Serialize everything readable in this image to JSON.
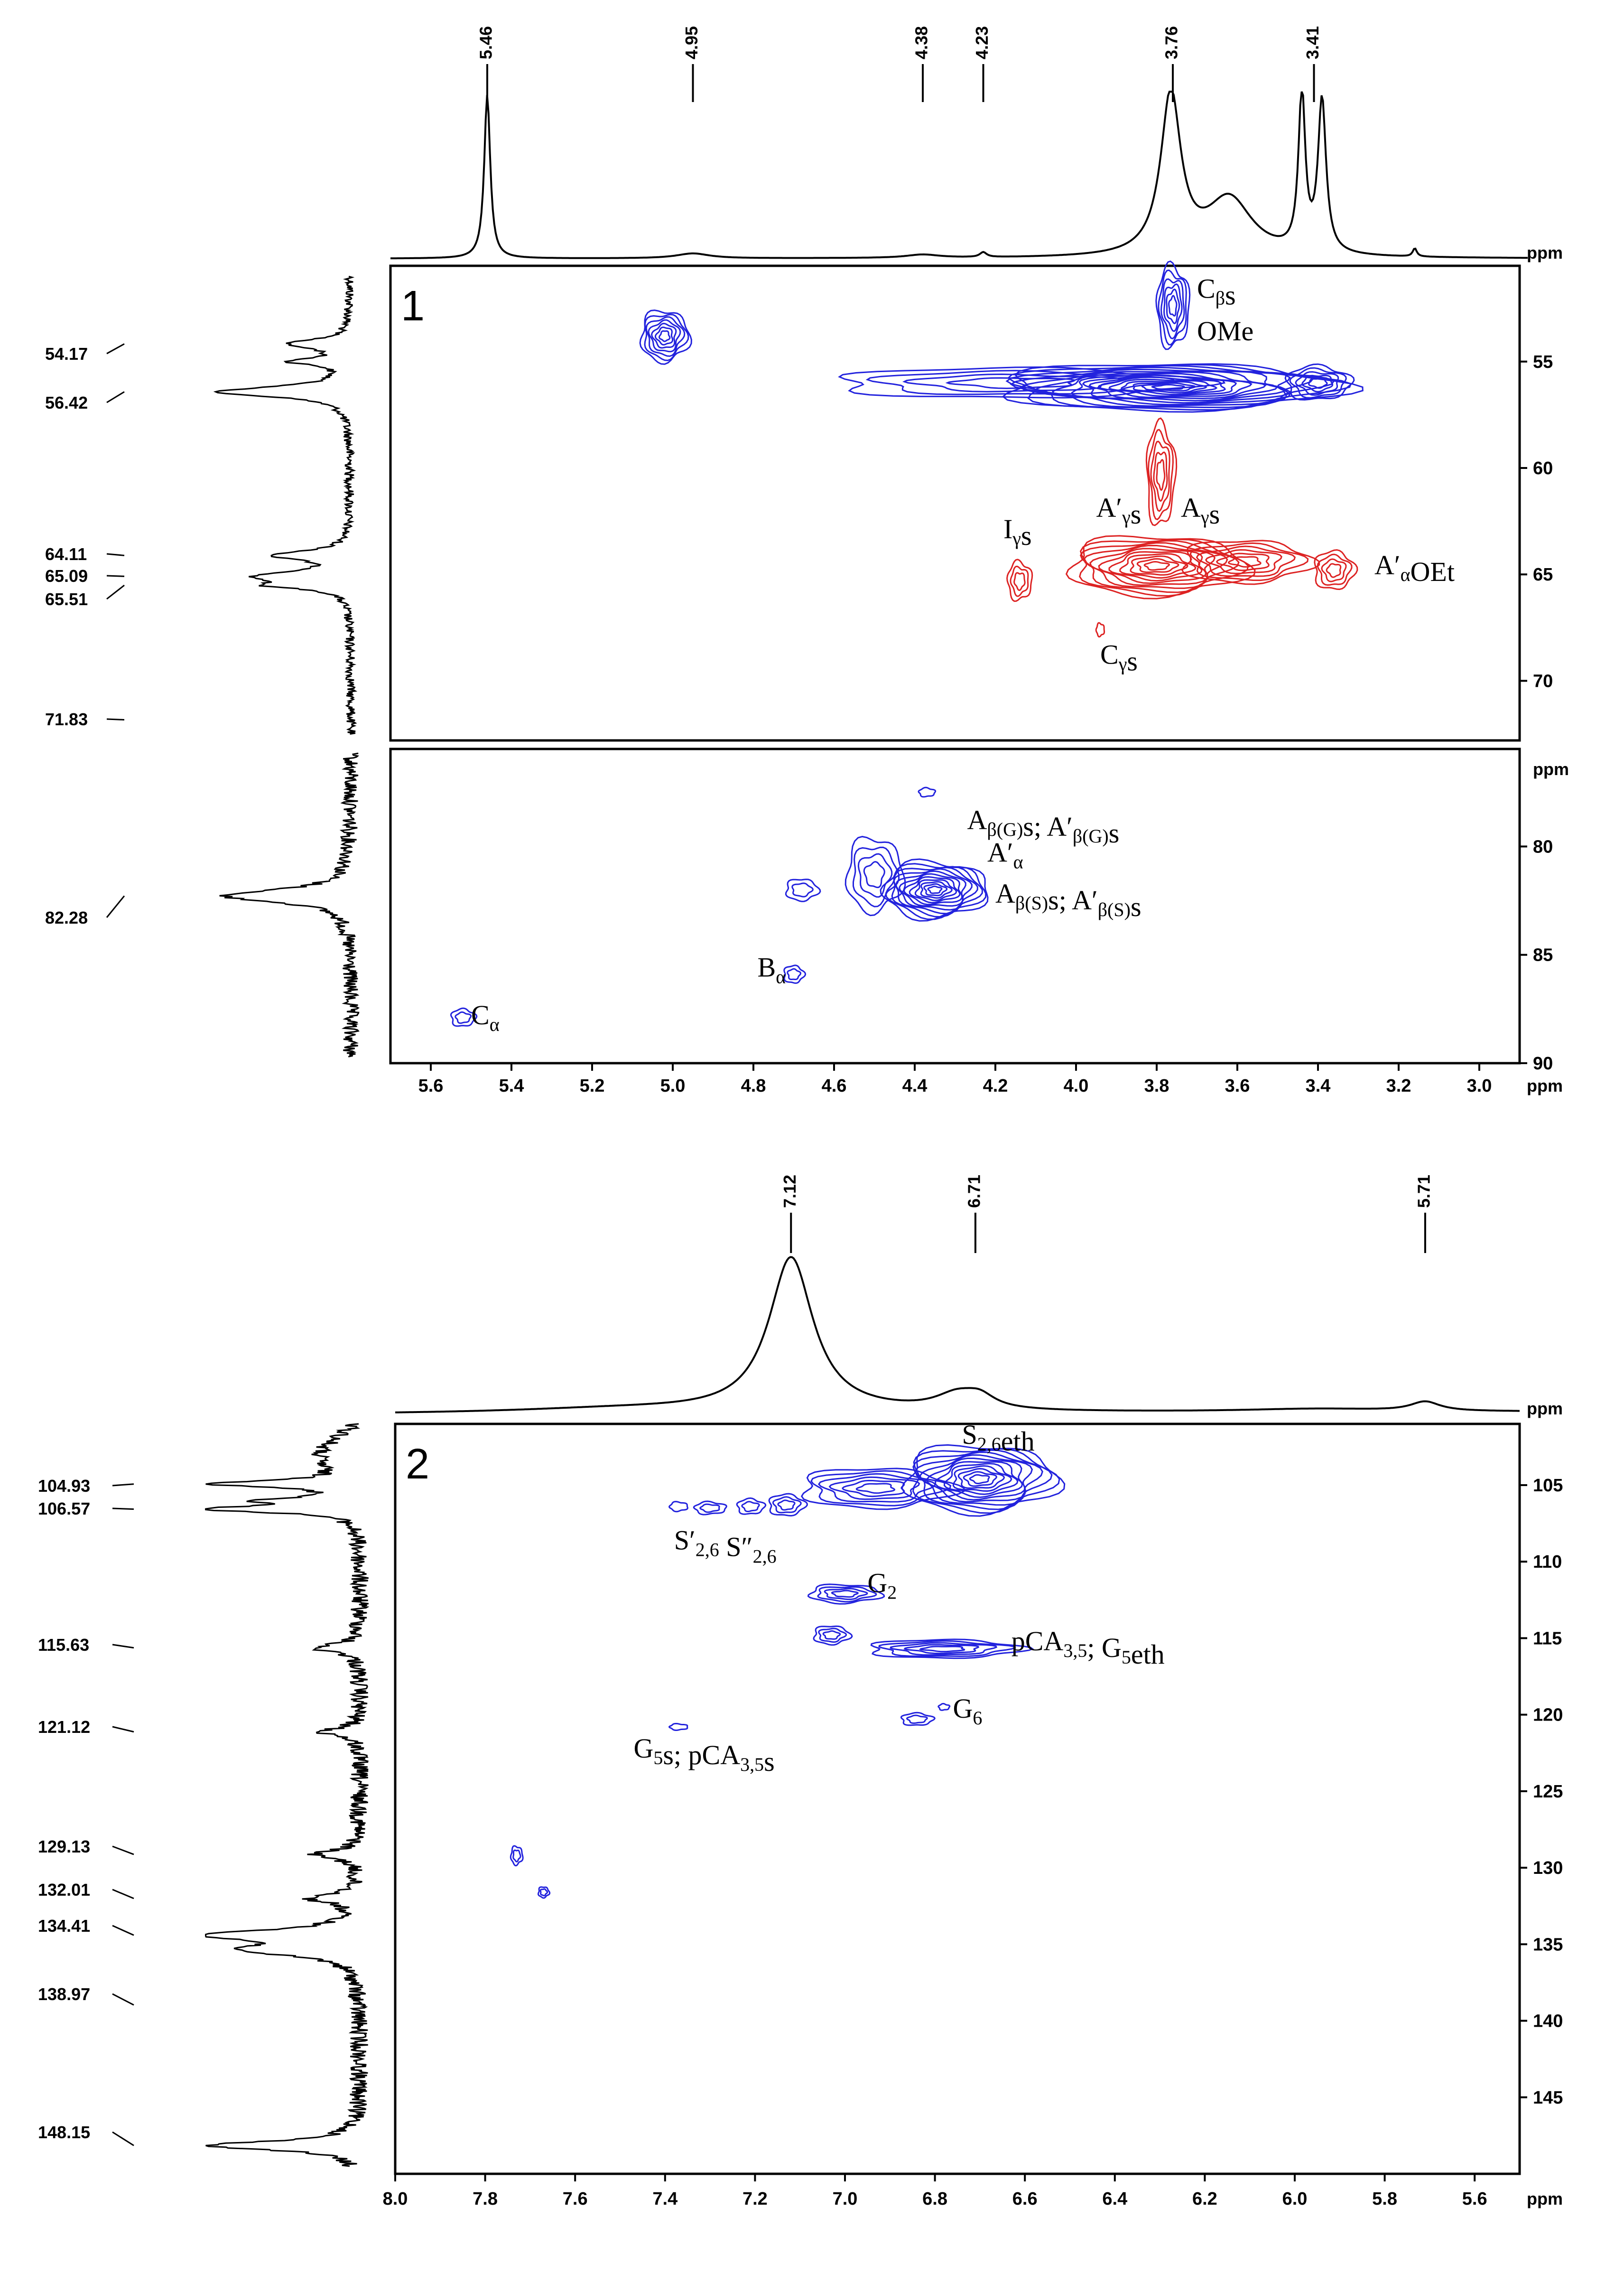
{
  "ppm_unit": "ppm",
  "colors": {
    "positive": "#2222dd",
    "negative": "#dd2222",
    "trace": "#000000"
  },
  "panel1": {
    "number": "1",
    "h_axis": {
      "min": 2.9,
      "max": 5.7,
      "ticks": [
        "5.6",
        "5.4",
        "5.2",
        "5.0",
        "4.8",
        "4.6",
        "4.4",
        "4.2",
        "4.0",
        "3.8",
        "3.6",
        "3.4",
        "3.2",
        "3.0"
      ],
      "tick_values": [
        5.6,
        5.4,
        5.2,
        5.0,
        4.8,
        4.6,
        4.4,
        4.2,
        4.0,
        3.8,
        3.6,
        3.4,
        3.2,
        3.0
      ]
    },
    "upper": {
      "c_min": 50.5,
      "c_max": 72.8,
      "ticks": [
        "55",
        "60",
        "65",
        "70"
      ],
      "tick_values": [
        55,
        60,
        65,
        70
      ]
    },
    "lower": {
      "c_min": 75.5,
      "c_max": 90,
      "ticks": [
        "80",
        "85",
        "90"
      ],
      "tick_values": [
        80,
        85,
        90
      ],
      "top_label": "ppm"
    },
    "proton_peaks": [
      {
        "label": "5.46",
        "ppm": 5.46
      },
      {
        "label": "4.95",
        "ppm": 4.95
      },
      {
        "label": "4.38",
        "ppm": 4.38
      },
      {
        "label": "4.23",
        "ppm": 4.23
      },
      {
        "label": "3.76",
        "ppm": 3.76
      },
      {
        "label": "3.41",
        "ppm": 3.41
      }
    ],
    "carbon_peaks": [
      {
        "label": "54.17",
        "ppm": 54.17
      },
      {
        "label": "56.42",
        "ppm": 56.42
      },
      {
        "label": "64.11",
        "ppm": 64.11
      },
      {
        "label": "65.09",
        "ppm": 65.09
      },
      {
        "label": "65.51",
        "ppm": 65.51
      },
      {
        "label": "71.83",
        "ppm": 71.83
      },
      {
        "label": "82.28",
        "ppm": 82.28
      }
    ],
    "annotations": [
      {
        "id": "cbs",
        "main": "C",
        "sub": "β",
        "tail": "s",
        "h": 3.7,
        "c": 52.0
      },
      {
        "id": "ome",
        "main": "OMe",
        "sub": "",
        "tail": "",
        "h": 3.7,
        "c": 54.0
      },
      {
        "id": "ags",
        "main": "A",
        "sub": "γ",
        "tail": "s",
        "h": 3.74,
        "c": 62.3
      },
      {
        "id": "apgs",
        "main": "A′",
        "sub": "γ",
        "tail": "s",
        "h": 3.95,
        "c": 62.3
      },
      {
        "id": "igs",
        "main": "I",
        "sub": "γ",
        "tail": "s",
        "h": 4.18,
        "c": 63.3
      },
      {
        "id": "aaoet",
        "main": "A′",
        "sub": "α",
        "tail": "OEt",
        "h": 3.26,
        "c": 65.0
      },
      {
        "id": "cgs",
        "main": "C",
        "sub": "γ",
        "tail": "s",
        "h": 3.94,
        "c": 69.2
      },
      {
        "id": "abg",
        "main": "A",
        "sub": "β(G)",
        "tail": "s; A′",
        "sub2": "β(G)",
        "tail2": "s",
        "h": 4.27,
        "c": 79.2
      },
      {
        "id": "apa",
        "main": "A′",
        "sub": "α",
        "tail": "",
        "h": 4.22,
        "c": 80.7
      },
      {
        "id": "abs",
        "main": "A",
        "sub": "β(S)",
        "tail": "s; A′",
        "sub2": "β(S)",
        "tail2": "s",
        "h": 4.2,
        "c": 82.6
      },
      {
        "id": "ba",
        "main": "B",
        "sub": "α",
        "tail": "",
        "h": 4.79,
        "c": 86.0
      },
      {
        "id": "ca",
        "main": "C",
        "sub": "α",
        "tail": "",
        "h": 5.5,
        "c": 88.2
      }
    ],
    "contours": {
      "positive": [
        {
          "h": 5.02,
          "c": 53.8,
          "rh": 0.06,
          "rc": 1.2,
          "n": 7
        },
        {
          "h": 3.77,
          "c": 56.2,
          "rh": 0.42,
          "rc": 1.1,
          "n": 16
        },
        {
          "h": 4.15,
          "c": 56.0,
          "rh": 0.45,
          "rc": 0.7,
          "n": 4
        },
        {
          "h": 3.4,
          "c": 56.0,
          "rh": 0.08,
          "rc": 0.8,
          "n": 5
        },
        {
          "h": 3.76,
          "c": 52.4,
          "rh": 0.04,
          "rc": 1.9,
          "n": 6
        },
        {
          "h": 4.35,
          "c": 82.0,
          "rh": 0.13,
          "rc": 1.3,
          "n": 12
        },
        {
          "h": 4.5,
          "c": 81.3,
          "rh": 0.07,
          "rc": 1.7,
          "n": 4
        },
        {
          "h": 4.68,
          "c": 82.0,
          "rh": 0.04,
          "rc": 0.5,
          "n": 2
        },
        {
          "h": 4.7,
          "c": 85.9,
          "rh": 0.025,
          "rc": 0.4,
          "n": 2
        },
        {
          "h": 5.52,
          "c": 87.9,
          "rh": 0.03,
          "rc": 0.4,
          "n": 2
        },
        {
          "h": 4.37,
          "c": 77.5,
          "rh": 0.02,
          "rc": 0.2,
          "n": 1
        }
      ],
      "negative": [
        {
          "h": 3.8,
          "c": 64.6,
          "rh": 0.22,
          "rc": 1.4,
          "n": 11
        },
        {
          "h": 3.58,
          "c": 64.4,
          "rh": 0.16,
          "rc": 1.0,
          "n": 6
        },
        {
          "h": 3.36,
          "c": 64.8,
          "rh": 0.05,
          "rc": 0.9,
          "n": 4
        },
        {
          "h": 3.79,
          "c": 60.3,
          "rh": 0.035,
          "rc": 2.4,
          "n": 5
        },
        {
          "h": 4.14,
          "c": 65.3,
          "rh": 0.03,
          "rc": 0.9,
          "n": 3
        },
        {
          "h": 3.94,
          "c": 67.6,
          "rh": 0.01,
          "rc": 0.3,
          "n": 1
        }
      ]
    }
  },
  "panel2": {
    "number": "2",
    "h_axis": {
      "min": 5.5,
      "max": 8.0,
      "ticks": [
        "8.0",
        "7.8",
        "7.6",
        "7.4",
        "7.2",
        "7.0",
        "6.8",
        "6.6",
        "6.4",
        "6.2",
        "6.0",
        "5.8",
        "5.6"
      ],
      "tick_values": [
        8.0,
        7.8,
        7.6,
        7.4,
        7.2,
        7.0,
        6.8,
        6.6,
        6.4,
        6.2,
        6.0,
        5.8,
        5.6
      ]
    },
    "c_axis": {
      "c_min": 101,
      "c_max": 150,
      "ticks": [
        "105",
        "110",
        "115",
        "120",
        "125",
        "130",
        "135",
        "140",
        "145"
      ],
      "tick_values": [
        105,
        110,
        115,
        120,
        125,
        130,
        135,
        140,
        145
      ]
    },
    "proton_peaks": [
      {
        "label": "7.12",
        "ppm": 7.12
      },
      {
        "label": "6.71",
        "ppm": 6.71
      },
      {
        "label": "5.71",
        "ppm": 5.71
      }
    ],
    "carbon_peaks": [
      {
        "label": "104.93",
        "ppm": 104.93
      },
      {
        "label": "106.57",
        "ppm": 106.57
      },
      {
        "label": "115.63",
        "ppm": 115.63
      },
      {
        "label": "121.12",
        "ppm": 121.12
      },
      {
        "label": "129.13",
        "ppm": 129.13
      },
      {
        "label": "132.01",
        "ppm": 132.01
      },
      {
        "label": "134.41",
        "ppm": 134.41
      },
      {
        "label": "138.97",
        "ppm": 138.97
      },
      {
        "label": "148.15",
        "ppm": 148.15
      }
    ],
    "annotations": [
      {
        "id": "s26eth",
        "main": "S",
        "sub": "2,6",
        "tail": "eth",
        "h": 6.74,
        "c": 102.3
      },
      {
        "id": "sp",
        "main": "S′",
        "sub": "2,6",
        "tail": " S″",
        "sub2": "2,6",
        "tail2": "",
        "h": 7.38,
        "c": 109.2
      },
      {
        "id": "g2",
        "main": "G",
        "sub": "2",
        "tail": "",
        "h": 6.95,
        "c": 112.0
      },
      {
        "id": "pca",
        "main": "pCA",
        "sub": "3,5",
        "tail": "; G",
        "sub2": "5",
        "tail2": "eth",
        "h": 6.63,
        "c": 115.8
      },
      {
        "id": "g6",
        "main": "G",
        "sub": "6",
        "tail": "",
        "h": 6.76,
        "c": 120.2
      },
      {
        "id": "g5s",
        "main": "G",
        "sub": "5",
        "tail": "s; pCA",
        "sub2": "3,5",
        "tail2": "s",
        "h": 7.47,
        "c": 122.8
      }
    ],
    "contours": {
      "positive": [
        {
          "h": 6.7,
          "c": 104.6,
          "rh": 0.17,
          "rc": 2.2,
          "n": 12
        },
        {
          "h": 6.93,
          "c": 105.2,
          "rh": 0.17,
          "rc": 1.3,
          "n": 6
        },
        {
          "h": 7.13,
          "c": 106.3,
          "rh": 0.04,
          "rc": 0.7,
          "n": 3
        },
        {
          "h": 7.21,
          "c": 106.4,
          "rh": 0.03,
          "rc": 0.5,
          "n": 2
        },
        {
          "h": 7.3,
          "c": 106.5,
          "rh": 0.035,
          "rc": 0.4,
          "n": 2
        },
        {
          "h": 7.37,
          "c": 106.4,
          "rh": 0.02,
          "rc": 0.3,
          "n": 1
        },
        {
          "h": 7.0,
          "c": 112.1,
          "rh": 0.08,
          "rc": 0.6,
          "n": 4
        },
        {
          "h": 7.03,
          "c": 114.8,
          "rh": 0.04,
          "rc": 0.6,
          "n": 3
        },
        {
          "h": 6.78,
          "c": 115.7,
          "rh": 0.17,
          "rc": 0.6,
          "n": 5
        },
        {
          "h": 6.84,
          "c": 120.3,
          "rh": 0.035,
          "rc": 0.4,
          "n": 2
        },
        {
          "h": 6.78,
          "c": 119.5,
          "rh": 0.012,
          "rc": 0.2,
          "n": 1
        },
        {
          "h": 7.37,
          "c": 120.8,
          "rh": 0.02,
          "rc": 0.2,
          "n": 1
        },
        {
          "h": 7.73,
          "c": 129.2,
          "rh": 0.013,
          "rc": 0.6,
          "n": 2
        },
        {
          "h": 7.67,
          "c": 131.6,
          "rh": 0.012,
          "rc": 0.35,
          "n": 2
        }
      ],
      "negative": []
    }
  }
}
